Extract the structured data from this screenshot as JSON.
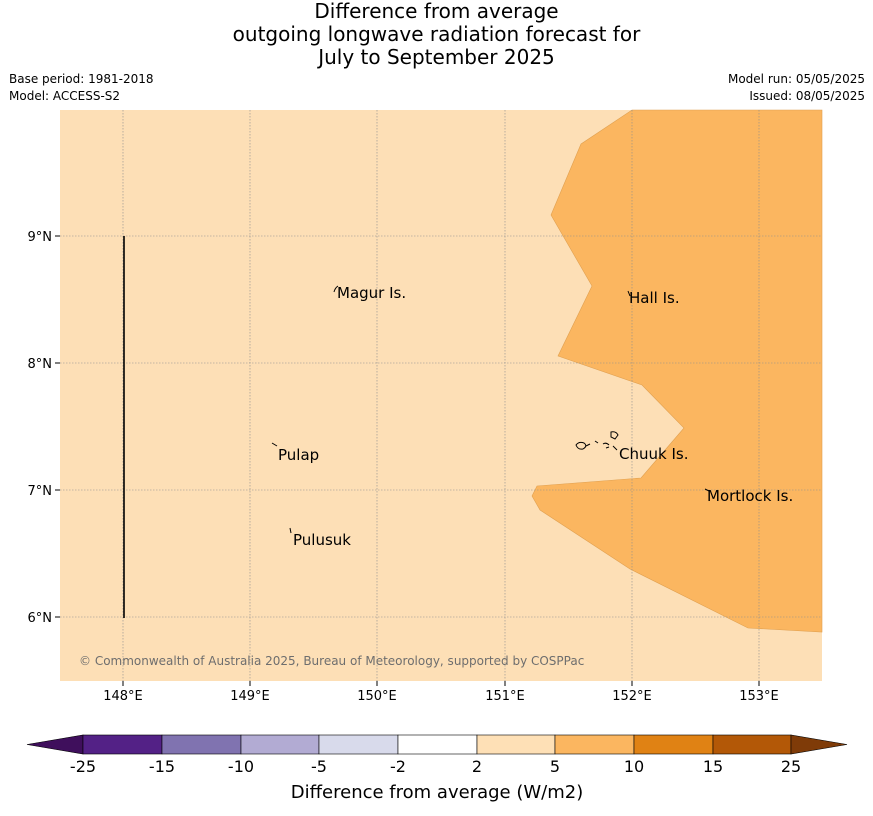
{
  "title": {
    "line1": "Difference from average",
    "line2": "outgoing longwave radiation forecast for",
    "line3": "July to September 2025"
  },
  "meta": {
    "base_period": "Base period: 1981-2018",
    "model": "Model: ACCESS-S2",
    "model_run": "Model run: 05/05/2025",
    "issued": "Issued: 08/05/2025"
  },
  "map": {
    "lon_labels": [
      "148°E",
      "149°E",
      "150°E",
      "151°E",
      "152°E",
      "153°E"
    ],
    "lat_labels": [
      "9°N",
      "8°N",
      "7°N",
      "6°N"
    ],
    "places": {
      "magur": "Magur Is.",
      "hall": "Hall Is.",
      "pulap": "Pulap",
      "chuuk": "Chuuk Is.",
      "mortlock": "Mortlock Is.",
      "pulusuk": "Pulusuk"
    },
    "copyright": "© Commonwealth of Australia 2025, Bureau of Meteorology, supported by COSPPac",
    "colors": {
      "band_2_5": "#fddfb6",
      "band_5_10": "#fbb660",
      "grid": "#8c8c8c"
    }
  },
  "colorbar": {
    "title": "Difference from average (W/m2)",
    "labels": [
      "-25",
      "-15",
      "-10",
      "-5",
      "-2",
      "2",
      "5",
      "10",
      "15",
      "25"
    ],
    "colors": [
      "#3f0f5c",
      "#532186",
      "#8073b0",
      "#b2abd3",
      "#d8daeb",
      "#ffffff",
      "#fee0b6",
      "#fbb660",
      "#e08214",
      "#b35807",
      "#7f3b08"
    ]
  }
}
